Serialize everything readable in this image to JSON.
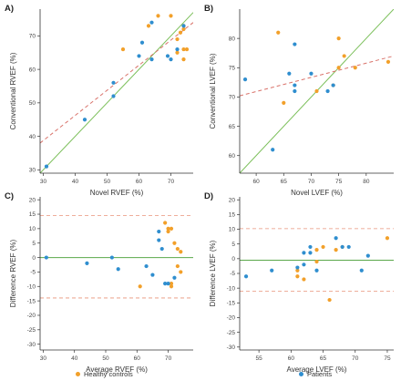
{
  "colors": {
    "healthy": "#f2a02a",
    "patients": "#2f8ecf",
    "identity": "#7bbf5a",
    "regression": "#d9726a",
    "axis": "#333333",
    "zero": "#5aa84a",
    "loa": "#e8937a"
  },
  "legend": {
    "healthy_label": "Healthy controls",
    "patients_label": "Patients"
  },
  "chart_data": [
    {
      "panel": "A)",
      "type": "scatter",
      "xlabel": "Novel RVEF (%)",
      "ylabel": "Conventional RVEF (%)",
      "xlim": [
        29,
        77
      ],
      "ylim": [
        29,
        78
      ],
      "xticks": [
        30,
        40,
        50,
        60,
        70
      ],
      "yticks": [
        30,
        40,
        50,
        60,
        70
      ],
      "identity_line": true,
      "regression_line": {
        "x": [
          29,
          77
        ],
        "y": [
          38,
          74
        ]
      },
      "series": [
        {
          "group": "healthy",
          "points": [
            [
              55,
              66
            ],
            [
              63,
              73
            ],
            [
              66,
              76
            ],
            [
              70,
              76
            ],
            [
              72,
              69
            ],
            [
              73,
              71
            ],
            [
              74,
              73
            ],
            [
              74,
              72
            ],
            [
              74,
              66
            ],
            [
              74,
              63
            ],
            [
              75,
              66
            ],
            [
              72,
              65
            ]
          ]
        },
        {
          "group": "patients",
          "points": [
            [
              31,
              31
            ],
            [
              43,
              45
            ],
            [
              52,
              56
            ],
            [
              52,
              52
            ],
            [
              60,
              64
            ],
            [
              61,
              68
            ],
            [
              64,
              74
            ],
            [
              64,
              63
            ],
            [
              69,
              64
            ],
            [
              70,
              63
            ],
            [
              72,
              66
            ],
            [
              74,
              73
            ]
          ]
        }
      ]
    },
    {
      "panel": "B)",
      "type": "scatter",
      "xlabel": "Novel LVEF (%)",
      "ylabel": "Conventional LVEF (%)",
      "xlim": [
        57,
        85
      ],
      "ylim": [
        57,
        85
      ],
      "xticks": [
        60,
        65,
        70,
        75,
        80
      ],
      "yticks": [
        60,
        65,
        70,
        75,
        80
      ],
      "identity_line": true,
      "regression_line": {
        "x": [
          57,
          85
        ],
        "y": [
          70.2,
          77.0
        ]
      },
      "series": [
        {
          "group": "healthy",
          "points": [
            [
              64,
              81
            ],
            [
              65,
              69
            ],
            [
              71,
              71
            ],
            [
              74,
              72
            ],
            [
              75,
              80
            ],
            [
              75,
              75
            ],
            [
              76,
              77
            ],
            [
              78,
              75
            ],
            [
              84,
              76
            ]
          ]
        },
        {
          "group": "patients",
          "points": [
            [
              58,
              73
            ],
            [
              63,
              61
            ],
            [
              66,
              74
            ],
            [
              67,
              79
            ],
            [
              67,
              72
            ],
            [
              67,
              71
            ],
            [
              70,
              74
            ],
            [
              73,
              71
            ],
            [
              74,
              72
            ]
          ]
        }
      ]
    },
    {
      "panel": "C)",
      "type": "scatter",
      "xlabel": "Average RVEF (%)",
      "ylabel": "Difference RVEF (%)",
      "xlim": [
        29,
        78
      ],
      "ylim": [
        -32,
        21
      ],
      "xticks": [
        30,
        40,
        50,
        60,
        70
      ],
      "yticks": [
        -30,
        -25,
        -20,
        -15,
        -10,
        -5,
        0,
        5,
        10,
        15,
        20
      ],
      "mean_line": 0,
      "limits_of_agreement": [
        14.5,
        -14
      ],
      "series": [
        {
          "group": "healthy",
          "points": [
            [
              61,
              -10
            ],
            [
              69,
              12
            ],
            [
              70,
              9
            ],
            [
              70,
              10
            ],
            [
              71,
              10
            ],
            [
              71,
              -10
            ],
            [
              72,
              5
            ],
            [
              73,
              3
            ],
            [
              74,
              2
            ],
            [
              74,
              -5
            ],
            [
              71,
              -9
            ],
            [
              73,
              -3
            ]
          ]
        },
        {
          "group": "patients",
          "points": [
            [
              31,
              0
            ],
            [
              44,
              -2
            ],
            [
              52,
              0
            ],
            [
              54,
              -4
            ],
            [
              63,
              -3
            ],
            [
              65,
              -6
            ],
            [
              67,
              6
            ],
            [
              68,
              3
            ],
            [
              69,
              -9
            ],
            [
              70,
              -9
            ],
            [
              72,
              -7
            ],
            [
              67,
              9
            ]
          ]
        }
      ]
    },
    {
      "panel": "D)",
      "type": "scatter",
      "xlabel": "Average LVEF (%)",
      "ylabel": "Difference LVEF (%)",
      "xlim": [
        52,
        76
      ],
      "ylim": [
        -31,
        21
      ],
      "xticks": [
        55,
        60,
        65,
        70,
        75
      ],
      "yticks": [
        -30,
        -25,
        -20,
        -15,
        -10,
        -5,
        0,
        5,
        10,
        15,
        20
      ],
      "mean_line": -0.5,
      "limits_of_agreement": [
        10.2,
        -11
      ],
      "series": [
        {
          "group": "healthy",
          "points": [
            [
              61,
              -4
            ],
            [
              61,
              -6
            ],
            [
              62,
              -7
            ],
            [
              64,
              -1
            ],
            [
              64,
              3
            ],
            [
              65,
              4
            ],
            [
              66,
              -14
            ],
            [
              67,
              3
            ],
            [
              68,
              4
            ],
            [
              75,
              7
            ]
          ]
        },
        {
          "group": "patients",
          "points": [
            [
              53,
              -6
            ],
            [
              57,
              -4
            ],
            [
              61,
              -3
            ],
            [
              62,
              -2
            ],
            [
              62,
              2
            ],
            [
              63,
              4
            ],
            [
              64,
              -4
            ],
            [
              67,
              7
            ],
            [
              68,
              4
            ],
            [
              69,
              4
            ],
            [
              71,
              -4
            ],
            [
              72,
              1
            ],
            [
              63,
              2
            ]
          ]
        }
      ]
    }
  ]
}
